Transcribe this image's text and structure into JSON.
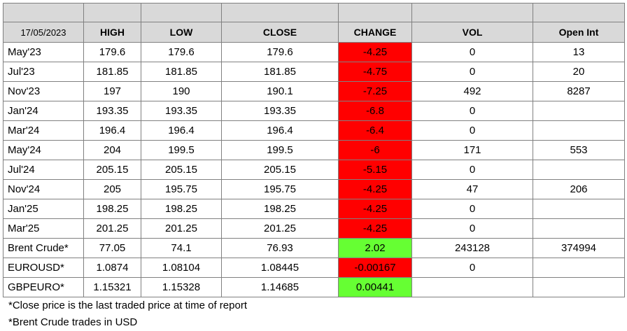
{
  "table": {
    "header": {
      "date": "17/05/2023",
      "high": "HIGH",
      "low": "LOW",
      "close": "CLOSE",
      "change": "CHANGE",
      "vol": "VOL",
      "open_int": "Open Int"
    },
    "rows": [
      {
        "name": "May'23",
        "high": "179.6",
        "low": "179.6",
        "close": "179.6",
        "change": "-4.25",
        "vol": "0",
        "open_int": "13"
      },
      {
        "name": "Jul'23",
        "high": "181.85",
        "low": "181.85",
        "close": "181.85",
        "change": "-4.75",
        "vol": "0",
        "open_int": "20"
      },
      {
        "name": "Nov'23",
        "high": "197",
        "low": "190",
        "close": "190.1",
        "change": "-7.25",
        "vol": "492",
        "open_int": "8287"
      },
      {
        "name": "Jan'24",
        "high": "193.35",
        "low": "193.35",
        "close": "193.35",
        "change": "-6.8",
        "vol": "0",
        "open_int": ""
      },
      {
        "name": "Mar'24",
        "high": "196.4",
        "low": "196.4",
        "close": "196.4",
        "change": "-6.4",
        "vol": "0",
        "open_int": ""
      },
      {
        "name": "May'24",
        "high": "204",
        "low": "199.5",
        "close": "199.5",
        "change": "-6",
        "vol": "171",
        "open_int": "553"
      },
      {
        "name": "Jul'24",
        "high": "205.15",
        "low": "205.15",
        "close": "205.15",
        "change": "-5.15",
        "vol": "0",
        "open_int": ""
      },
      {
        "name": "Nov'24",
        "high": "205",
        "low": "195.75",
        "close": "195.75",
        "change": "-4.25",
        "vol": "47",
        "open_int": "206"
      },
      {
        "name": "Jan'25",
        "high": "198.25",
        "low": "198.25",
        "close": "198.25",
        "change": "-4.25",
        "vol": "0",
        "open_int": ""
      },
      {
        "name": "Mar'25",
        "high": "201.25",
        "low": "201.25",
        "close": "201.25",
        "change": "-4.25",
        "vol": "0",
        "open_int": ""
      },
      {
        "name": "Brent Crude*",
        "high": "77.05",
        "low": "74.1",
        "close": "76.93",
        "change": "2.02",
        "vol": "243128",
        "open_int": "374994"
      },
      {
        "name": "EUROUSD*",
        "high": "1.0874",
        "low": "1.08104",
        "close": "1.08445",
        "change": "-0.00167",
        "vol": "0",
        "open_int": ""
      },
      {
        "name": "GBPEURO*",
        "high": "1.15321",
        "low": "1.15328",
        "close": "1.14685",
        "change": "0.00441",
        "vol": "",
        "open_int": ""
      }
    ]
  },
  "notes": {
    "note1": "*Close price is the last traded price at time of report",
    "note2": "*Brent Crude trades in USD"
  },
  "colors": {
    "negative_change": "#ff0000",
    "positive_change": "#66ff33",
    "header_fill": "#d9d9d9"
  }
}
